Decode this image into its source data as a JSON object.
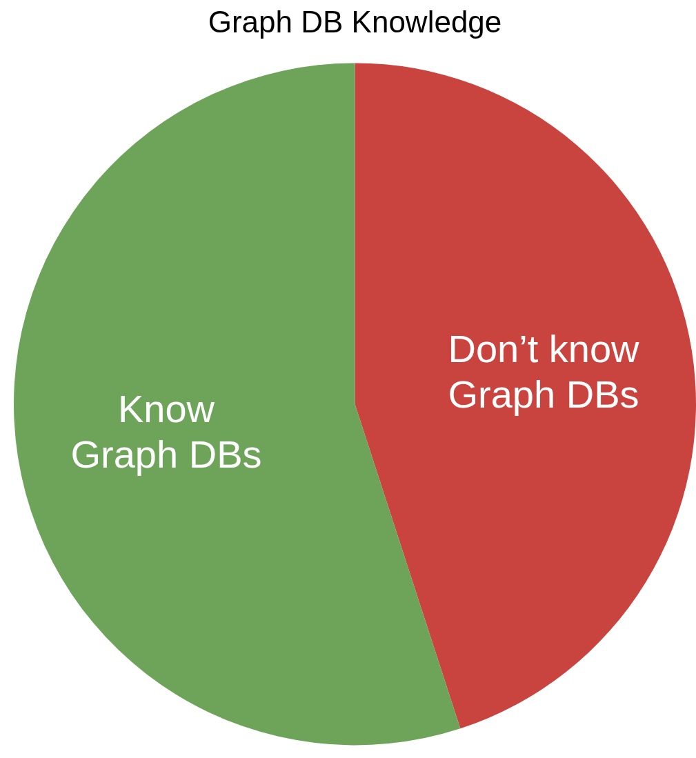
{
  "chart_data": {
    "type": "pie",
    "title": "Graph DB Knowledge",
    "categories": [
      "Don’t know Graph DBs",
      "Know Graph DBs"
    ],
    "values": [
      45,
      55
    ],
    "colors": [
      "#c9443f",
      "#6da45a"
    ]
  }
}
